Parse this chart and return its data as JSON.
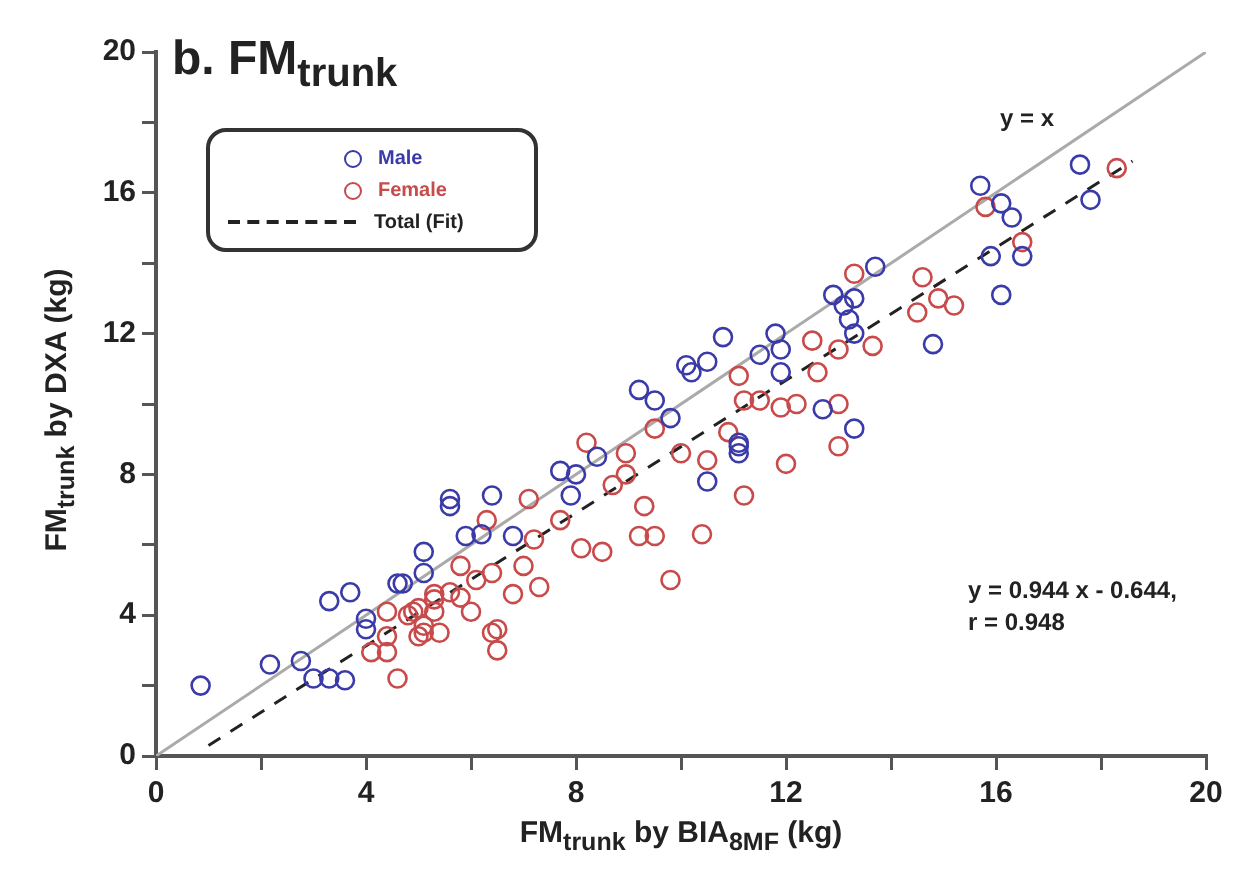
{
  "chart_data": {
    "type": "scatter",
    "title": "b. FM$_{trunk}$",
    "xlabel": "FM$_{trunk}$ by BIA$_{8MF}$ (kg)",
    "ylabel": "FM$_{trunk}$ by DXA (kg)",
    "legend": "top left",
    "xlim": [
      0,
      20
    ],
    "ylim": [
      0,
      20
    ],
    "xticks": [
      0,
      {
        "value": 2,
        "label": null
      },
      4,
      {
        "value": 6,
        "label": null
      },
      8,
      {
        "value": 10,
        "label": null
      },
      12,
      {
        "value": 14,
        "label": null
      },
      16,
      {
        "value": 18,
        "label": null
      },
      20
    ],
    "yticks": [
      0,
      {
        "value": 2,
        "label": null
      },
      4,
      {
        "value": 6,
        "label": null
      },
      8,
      {
        "value": 10,
        "label": null
      },
      12,
      {
        "value": 14,
        "label": null
      },
      16,
      {
        "value": 18,
        "label": null
      },
      20
    ],
    "annotations": [
      "y = x",
      "y = 0.944 x - 0.644,",
      "r = 0.948"
    ],
    "series": [
      {
        "name": "Male",
        "marker": "circle",
        "color": "#3a3aa8",
        "x": [
          0.85,
          2.17,
          2.76,
          3.0,
          3.3,
          3.6,
          3.3,
          3.7,
          4.0,
          4.0,
          4.7,
          5.1,
          5.1,
          5.6,
          5.9,
          6.2,
          10.8,
          10.5,
          10.1,
          9.2,
          9.5,
          11.1,
          10.5,
          7.7,
          8.0,
          6.4,
          5.6,
          5.9,
          6.8,
          5.1,
          4.6,
          7.9,
          8.4,
          9.8,
          17.6,
          17.8,
          15.7,
          16.1,
          16.3,
          16.5,
          15.9,
          16.1,
          13.7,
          12.9,
          13.3,
          13.1,
          13.2,
          13.3,
          14.8,
          11.8,
          11.9,
          11.5,
          11.9,
          12.7,
          13.3,
          11.1,
          11.1,
          10.2
        ],
        "values": [
          2.0,
          2.6,
          2.7,
          2.2,
          2.2,
          2.15,
          4.4,
          4.65,
          3.9,
          3.6,
          4.9,
          5.8,
          5.2,
          7.1,
          null,
          6.3,
          11.9,
          11.2,
          11.1,
          10.4,
          10.1,
          8.9,
          7.8,
          8.1,
          8.0,
          7.4,
          7.3,
          6.25,
          6.25,
          null,
          4.9,
          7.4,
          8.5,
          9.6,
          16.8,
          15.8,
          16.2,
          15.7,
          15.3,
          14.2,
          14.2,
          13.1,
          13.9,
          13.1,
          13.0,
          12.8,
          12.4,
          12.0,
          11.7,
          12.0,
          11.55,
          11.4,
          10.9,
          9.85,
          9.3,
          8.8,
          8.6,
          10.9
        ]
      },
      {
        "name": "Female",
        "marker": "circle",
        "color": "#c84a4a",
        "x": [
          4.1,
          4.4,
          4.6,
          4.4,
          4.8,
          5.0,
          5.1,
          5.4,
          5.0,
          5.3,
          4.4,
          5.6,
          6.0,
          5.8,
          6.3,
          6.4,
          5.3,
          11.2,
          10.4,
          9.8,
          9.2,
          9.5,
          9.3,
          8.7,
          8.95,
          9.5,
          10.0,
          10.5,
          10.9,
          11.2,
          8.5,
          7.7,
          7.1,
          7.2,
          7.0,
          6.4,
          6.1,
          5.8,
          6.5,
          6.5,
          5.3,
          4.9,
          5.1,
          8.2,
          8.95,
          8.1,
          7.3,
          6.8,
          18.3,
          15.8,
          16.5,
          13.3,
          14.6,
          14.9,
          15.2,
          14.5,
          13.65,
          13.0,
          12.5,
          12.6,
          12.2,
          11.9,
          13.0,
          13.0,
          12.0,
          11.1,
          11.5
        ],
        "values": [
          2.95,
          2.95,
          2.2,
          3.4,
          4.0,
          3.4,
          3.7,
          3.5,
          4.2,
          4.1,
          4.1,
          4.65,
          4.1,
          5.4,
          6.7,
          3.5,
          4.45,
          7.4,
          6.3,
          5.0,
          6.25,
          6.25,
          7.1,
          7.7,
          8.6,
          9.3,
          8.6,
          8.4,
          9.2,
          10.1,
          5.8,
          6.7,
          7.3,
          6.15,
          5.4,
          5.2,
          5.0,
          4.5,
          3.6,
          3.0,
          4.6,
          4.1,
          3.5,
          8.9,
          8.0,
          5.9,
          4.8,
          4.6,
          16.7,
          15.6,
          14.6,
          13.7,
          13.6,
          13.0,
          12.8,
          12.6,
          11.65,
          11.55,
          11.8,
          10.9,
          10.0,
          9.9,
          10.0,
          8.8,
          8.3,
          10.8,
          10.1
        ]
      },
      {
        "type": "line",
        "marker": "none",
        "color": "#aaaaaa",
        "line_style": "solid",
        "x": [
          0,
          20
        ],
        "values": [
          0,
          20
        ]
      },
      {
        "name": "Total (Fit)",
        "type": "line",
        "marker": "none",
        "color": "#222222",
        "line_style": "dashed",
        "x": [
          1,
          18.6
        ],
        "values": [
          0.3,
          16.9
        ]
      }
    ]
  }
}
